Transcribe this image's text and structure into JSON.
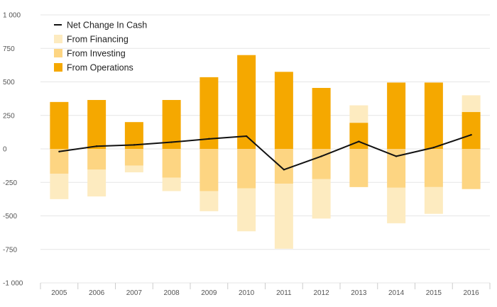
{
  "chart_data": {
    "type": "bar",
    "stacked": true,
    "categories": [
      "2005",
      "2006",
      "2007",
      "2008",
      "2009",
      "2010",
      "2011",
      "2012",
      "2013",
      "2014",
      "2015",
      "2016"
    ],
    "ylim": [
      -1000,
      1000
    ],
    "yticks": [
      1000,
      750,
      500,
      250,
      0,
      -250,
      -500,
      -750,
      -1000
    ],
    "ytick_labels": [
      "1 000",
      "750",
      "500",
      "250",
      "0",
      "-250",
      "-500",
      "-750",
      "-1 000"
    ],
    "grid": true,
    "legend_position": "top-left",
    "series": [
      {
        "name": "From Operations",
        "kind": "bar",
        "color": "#F5A800",
        "values": [
          350,
          365,
          200,
          365,
          535,
          700,
          575,
          455,
          195,
          495,
          495,
          275
        ]
      },
      {
        "name": "From Investing",
        "kind": "bar",
        "color": "#FDD582",
        "values": [
          -185,
          -155,
          -125,
          -215,
          -315,
          -295,
          -260,
          -225,
          -285,
          -290,
          -285,
          -300
        ]
      },
      {
        "name": "From Financing",
        "kind": "bar",
        "color": "#FDEBC0",
        "values": [
          -190,
          -200,
          -50,
          -100,
          -150,
          -320,
          -485,
          -295,
          130,
          -265,
          -200,
          125
        ]
      },
      {
        "name": "Net Change In Cash",
        "kind": "line",
        "color": "#111111",
        "values": [
          -20,
          20,
          30,
          50,
          75,
          95,
          -155,
          -55,
          55,
          -55,
          10,
          105
        ]
      }
    ],
    "legend_order": [
      "Net Change In Cash",
      "From Financing",
      "From Investing",
      "From Operations"
    ]
  }
}
